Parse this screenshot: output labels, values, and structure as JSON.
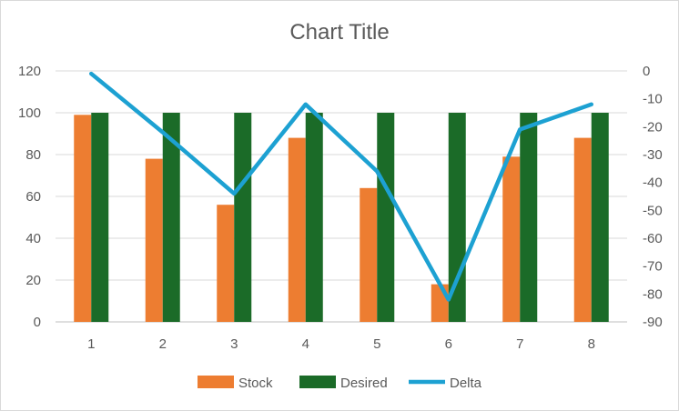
{
  "chart_data": {
    "type": "bar",
    "title": "Chart Title",
    "categories": [
      "1",
      "2",
      "3",
      "4",
      "5",
      "6",
      "7",
      "8"
    ],
    "series": [
      {
        "name": "Stock",
        "type": "bar",
        "axis": "left",
        "values": [
          99,
          78,
          56,
          88,
          64,
          18,
          79,
          88
        ],
        "color": "#ED7D31"
      },
      {
        "name": "Desired",
        "type": "bar",
        "axis": "left",
        "values": [
          100,
          100,
          100,
          100,
          100,
          100,
          100,
          100
        ],
        "color": "#1B6B28"
      },
      {
        "name": "Delta",
        "type": "line",
        "axis": "right",
        "values": [
          -1,
          -22,
          -44,
          -12,
          -36,
          -82,
          -21,
          -12
        ],
        "color": "#1DA1D2"
      }
    ],
    "y_left": {
      "min": 0,
      "max": 120,
      "ticks": [
        "0",
        "20",
        "40",
        "60",
        "80",
        "100",
        "120"
      ]
    },
    "y_right": {
      "min": -90,
      "max": 0,
      "ticks": [
        "0",
        "-10",
        "-20",
        "-30",
        "-40",
        "-50",
        "-60",
        "-70",
        "-80",
        "-90"
      ]
    },
    "grid": true,
    "legend_position": "bottom"
  }
}
